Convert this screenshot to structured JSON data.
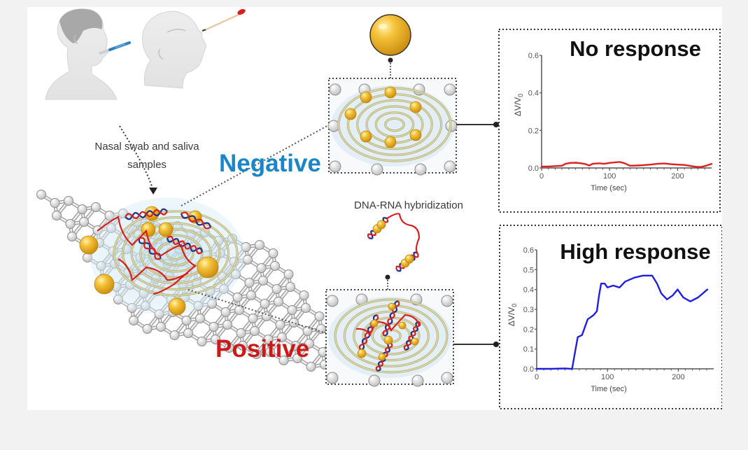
{
  "figure": {
    "sample_caption_line1": "Nasal swab and saliva",
    "sample_caption_line2": "samples",
    "negative_label": "Negative",
    "positive_label": "Positive",
    "hybridization_label": "DNA-RNA hybridization",
    "colors": {
      "negative": "#1a86c8",
      "positive": "#cc1a1a",
      "gold": "#f2b92c",
      "graphene": "#cfcfcf",
      "electrode": "#b9b57a",
      "dna_strand": "#1c2f8a",
      "rna_strand": "#d62020",
      "background": "#f2f2f2"
    }
  },
  "chart_data": [
    {
      "type": "line",
      "title": "No response",
      "xlabel": "Time (sec)",
      "ylabel": "ΔV/V0",
      "xlim": [
        0,
        250
      ],
      "ylim": [
        0,
        0.6
      ],
      "xticks": [
        0,
        100,
        200
      ],
      "yticks": [
        0.0,
        0.2,
        0.4,
        0.6
      ],
      "ytick_labels": [
        "0.0",
        "0.2",
        "0.4",
        "0.6"
      ],
      "grid": false,
      "series": [
        {
          "name": "negative",
          "color": "#e02020",
          "x": [
            0,
            10,
            20,
            30,
            35,
            42,
            50,
            58,
            65,
            70,
            75,
            85,
            92,
            100,
            108,
            115,
            122,
            130,
            140,
            150,
            160,
            170,
            180,
            190,
            200,
            210,
            220,
            228,
            235,
            242,
            250
          ],
          "y": [
            0.008,
            0.008,
            0.01,
            0.012,
            0.022,
            0.027,
            0.028,
            0.025,
            0.02,
            0.013,
            0.022,
            0.025,
            0.022,
            0.027,
            0.03,
            0.032,
            0.025,
            0.012,
            0.013,
            0.015,
            0.018,
            0.022,
            0.024,
            0.02,
            0.018,
            0.016,
            0.01,
            0.006,
            0.006,
            0.012,
            0.022
          ]
        }
      ]
    },
    {
      "type": "line",
      "title": "High response",
      "xlabel": "Time (sec)",
      "ylabel": "ΔV/V0",
      "xlim": [
        0,
        250
      ],
      "ylim": [
        0,
        0.6
      ],
      "xticks": [
        0,
        100,
        200
      ],
      "yticks": [
        0.0,
        0.1,
        0.2,
        0.3,
        0.4,
        0.5,
        0.6
      ],
      "ytick_labels": [
        "0.0",
        "0.1",
        "0.2",
        "0.3",
        "0.4",
        "0.5",
        "0.6"
      ],
      "grid": false,
      "series": [
        {
          "name": "positive",
          "color": "#1f1fe0",
          "x": [
            0,
            20,
            40,
            48,
            50,
            54,
            58,
            64,
            72,
            80,
            85,
            88,
            91,
            96,
            100,
            108,
            117,
            125,
            138,
            150,
            163,
            170,
            176,
            184,
            192,
            199,
            207,
            217,
            228,
            241
          ],
          "y": [
            0.0,
            0.0,
            0.002,
            0.0,
            0.0,
            0.08,
            0.16,
            0.17,
            0.25,
            0.27,
            0.29,
            0.37,
            0.43,
            0.43,
            0.41,
            0.42,
            0.41,
            0.44,
            0.46,
            0.47,
            0.47,
            0.43,
            0.38,
            0.35,
            0.37,
            0.4,
            0.36,
            0.34,
            0.36,
            0.4
          ]
        }
      ]
    }
  ]
}
